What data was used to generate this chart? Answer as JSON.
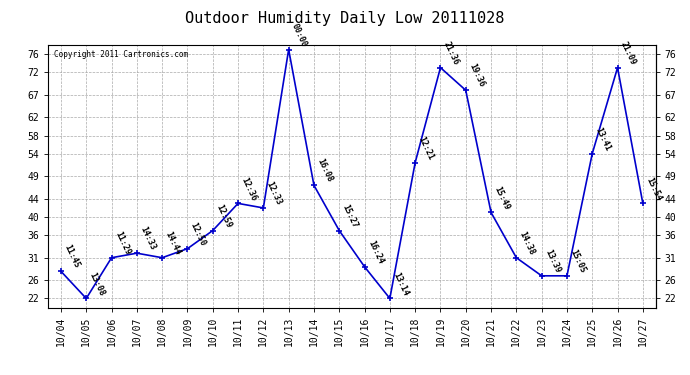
{
  "title": "Outdoor Humidity Daily Low 20111028",
  "copyright": "Copyright 2011 Cartronics.com",
  "x_labels": [
    "10/04",
    "10/05",
    "10/06",
    "10/07",
    "10/08",
    "10/09",
    "10/10",
    "10/11",
    "10/12",
    "10/13",
    "10/14",
    "10/15",
    "10/16",
    "10/17",
    "10/18",
    "10/19",
    "10/20",
    "10/21",
    "10/22",
    "10/23",
    "10/24",
    "10/25",
    "10/26",
    "10/27"
  ],
  "y_values": [
    28,
    22,
    31,
    32,
    31,
    33,
    37,
    43,
    42,
    77,
    47,
    37,
    29,
    22,
    52,
    73,
    68,
    41,
    31,
    27,
    27,
    54,
    73,
    43
  ],
  "point_labels": [
    "11:45",
    "13:08",
    "11:29",
    "14:33",
    "14:44",
    "12:50",
    "12:59",
    "12:36",
    "12:33",
    "00:00",
    "16:08",
    "15:27",
    "16:24",
    "13:14",
    "12:21",
    "21:36",
    "19:36",
    "15:49",
    "14:38",
    "13:39",
    "15:05",
    "13:41",
    "21:09",
    "15:54"
  ],
  "ylim": [
    20,
    78
  ],
  "yticks": [
    22,
    26,
    31,
    36,
    40,
    44,
    49,
    54,
    58,
    62,
    67,
    72,
    76
  ],
  "line_color": "#0000cc",
  "marker_color": "#0000cc",
  "bg_color": "#ffffff",
  "grid_color": "#aaaaaa",
  "title_fontsize": 11,
  "tick_fontsize": 7,
  "label_fontsize": 6
}
